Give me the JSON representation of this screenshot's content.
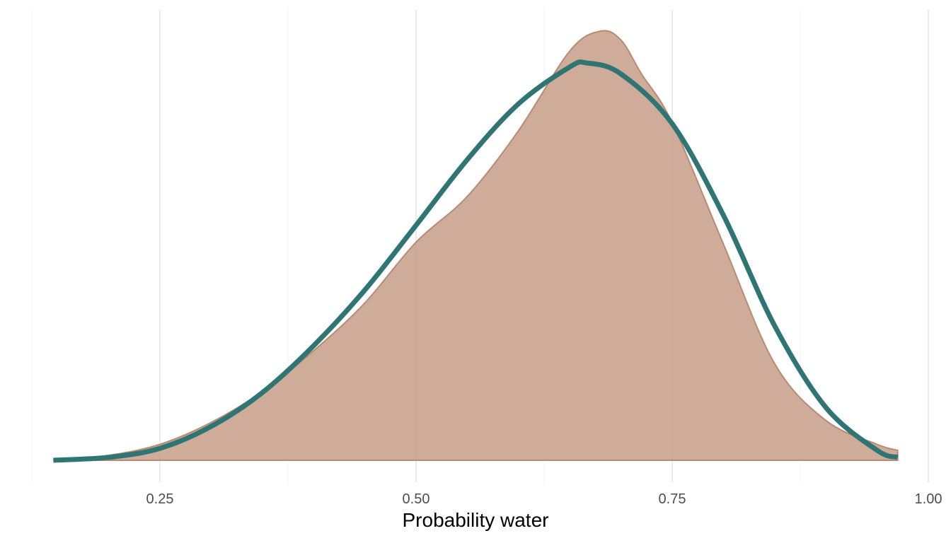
{
  "chart_data": {
    "type": "area",
    "title": "",
    "xlabel": "Probability water",
    "ylabel": "",
    "xlim": [
      0.125,
      1.0
    ],
    "x_ticks": [
      0.25,
      0.5,
      0.75,
      1.0
    ],
    "x_tick_labels": [
      "0.25",
      "0.50",
      "0.75",
      "1.00"
    ],
    "y_ticks": [],
    "grid": "vertical",
    "legend": "none",
    "colors": {
      "density_fill": "#c8a08b",
      "density_outline": "#b98a72",
      "curve": "#2f7573"
    },
    "series": [
      {
        "type": "area",
        "x": [
          0.146,
          0.2,
          0.25,
          0.3,
          0.35,
          0.4,
          0.45,
          0.5,
          0.55,
          0.6,
          0.65,
          0.68,
          0.7,
          0.72,
          0.75,
          0.8,
          0.85,
          0.9,
          0.95,
          0.97
        ],
        "y": [
          0.0,
          0.05,
          0.16,
          0.38,
          0.69,
          1.1,
          1.58,
          2.19,
          2.65,
          3.31,
          4.11,
          4.31,
          4.22,
          3.88,
          3.39,
          2.17,
          0.97,
          0.4,
          0.16,
          0.1
        ]
      },
      {
        "type": "line",
        "x": [
          0.146,
          0.2,
          0.25,
          0.3,
          0.35,
          0.4,
          0.45,
          0.5,
          0.55,
          0.6,
          0.65,
          0.6667,
          0.7,
          0.75,
          0.8,
          0.85,
          0.9,
          0.95,
          0.97
        ],
        "y": [
          0.0,
          0.03,
          0.12,
          0.34,
          0.68,
          1.15,
          1.71,
          2.36,
          3.02,
          3.58,
          3.95,
          3.99,
          3.88,
          3.38,
          2.46,
          1.35,
          0.53,
          0.1,
          0.03
        ]
      }
    ]
  }
}
